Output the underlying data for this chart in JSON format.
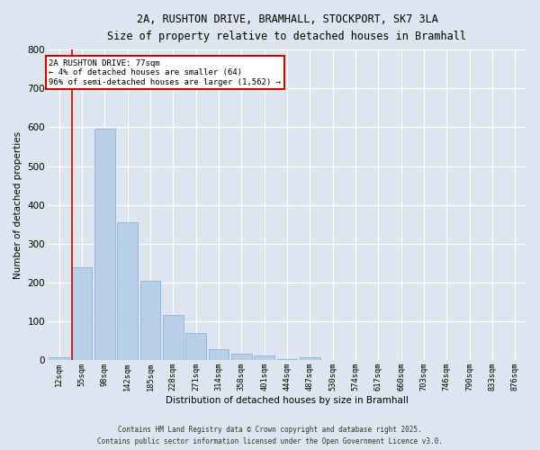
{
  "title_line1": "2A, RUSHTON DRIVE, BRAMHALL, STOCKPORT, SK7 3LA",
  "title_line2": "Size of property relative to detached houses in Bramhall",
  "xlabel": "Distribution of detached houses by size in Bramhall",
  "ylabel": "Number of detached properties",
  "categories": [
    "12sqm",
    "55sqm",
    "98sqm",
    "142sqm",
    "185sqm",
    "228sqm",
    "271sqm",
    "314sqm",
    "358sqm",
    "401sqm",
    "444sqm",
    "487sqm",
    "530sqm",
    "574sqm",
    "617sqm",
    "660sqm",
    "703sqm",
    "746sqm",
    "790sqm",
    "833sqm",
    "876sqm"
  ],
  "values": [
    8,
    240,
    597,
    355,
    205,
    117,
    70,
    28,
    17,
    13,
    3,
    8,
    0,
    0,
    0,
    0,
    0,
    0,
    0,
    0,
    0
  ],
  "bar_color": "#b8cfe8",
  "bar_edge_color": "#7aafd4",
  "background_color": "#dde5f0",
  "plot_bg_color": "#dde5f0",
  "vline_color": "#cc0000",
  "annotation_text": "2A RUSHTON DRIVE: 77sqm\n← 4% of detached houses are smaller (64)\n96% of semi-detached houses are larger (1,562) →",
  "annotation_box_color": "#cc0000",
  "ylim": [
    0,
    800
  ],
  "yticks": [
    0,
    100,
    200,
    300,
    400,
    500,
    600,
    700,
    800
  ],
  "footer_line1": "Contains HM Land Registry data © Crown copyright and database right 2025.",
  "footer_line2": "Contains public sector information licensed under the Open Government Licence v3.0."
}
